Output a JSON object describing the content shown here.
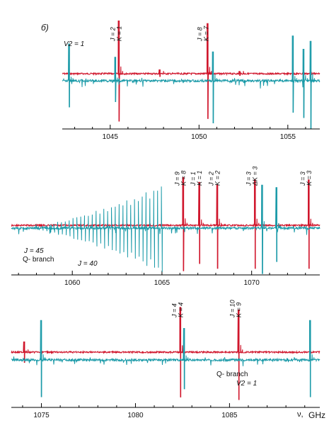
{
  "figure_label": "б)",
  "unit_label": "GHz",
  "nu_symbol": "ν,",
  "colors": {
    "red": "#d0162c",
    "blue": "#1a9aa8",
    "axis": "#000000"
  },
  "chart_data": [
    {
      "type": "line",
      "panel": "top",
      "xlim": [
        1042.3,
        1056.8
      ],
      "ticks": [
        1045,
        1050,
        1055
      ],
      "tick_labels": [
        "1045",
        "1050",
        "1055"
      ],
      "series": [
        {
          "color": "red",
          "peaks": [
            {
              "x": 1045.5,
              "up": 1.0,
              "down": 0.9
            },
            {
              "x": 1050.5,
              "up": 0.95,
              "down": 0.85
            },
            {
              "x": 1047.8,
              "up": 0.08,
              "down": 0.06
            },
            {
              "x": 1052.3,
              "up": 0.05,
              "down": 0.04
            }
          ]
        },
        {
          "color": "blue",
          "peaks": [
            {
              "x": 1042.7,
              "up": 0.7,
              "down": 0.5
            },
            {
              "x": 1045.3,
              "up": 0.45,
              "down": 0.4
            },
            {
              "x": 1050.8,
              "up": 0.55,
              "down": 0.8
            },
            {
              "x": 1055.3,
              "up": 0.85,
              "down": 0.6
            },
            {
              "x": 1055.9,
              "up": 0.6,
              "down": 0.7
            },
            {
              "x": 1056.3,
              "up": 0.75,
              "down": 0.9
            }
          ]
        }
      ],
      "annotations": [
        {
          "x": 1045.5,
          "lines": [
            "J = 2",
            "K = 1"
          ]
        },
        {
          "x": 1050.4,
          "lines": [
            "J = 8",
            "K = 7"
          ]
        }
      ],
      "notes": [
        {
          "text": "V2 = 1"
        }
      ]
    },
    {
      "type": "line",
      "panel": "middle",
      "xlim": [
        1056.6,
        1073.8
      ],
      "ticks": [
        1060,
        1065,
        1070
      ],
      "tick_labels": [
        "1060",
        "1065",
        "1070"
      ],
      "series": [
        {
          "color": "red",
          "peaks": [
            {
              "x": 1066.2,
              "up": 1.0,
              "down": 0.95
            },
            {
              "x": 1067.1,
              "up": 0.9,
              "down": 0.8
            },
            {
              "x": 1068.1,
              "up": 0.85,
              "down": 0.9
            },
            {
              "x": 1070.2,
              "up": 0.95,
              "down": 0.9
            },
            {
              "x": 1073.2,
              "up": 0.95,
              "down": 0.9
            }
          ]
        },
        {
          "color": "blue",
          "peaks": [
            {
              "x": 1070.6,
              "up": 0.9,
              "down": 0.95
            },
            {
              "x": 1071.4,
              "up": 0.85,
              "down": 0.7
            }
          ],
          "q_branch": {
            "from": 1057.5,
            "to": 1065.0,
            "lines": 36,
            "max_amp": 1.0
          }
        }
      ],
      "annotations": [
        {
          "x": 1066.2,
          "lines": [
            "J = 9",
            "K = 8"
          ]
        },
        {
          "x": 1067.1,
          "lines": [
            "J = 1",
            "K = 1"
          ]
        },
        {
          "x": 1068.1,
          "lines": [
            "J = 2",
            "K = 2"
          ]
        },
        {
          "x": 1070.2,
          "lines": [
            "J = 3",
            "ΔK = 3"
          ]
        },
        {
          "x": 1073.2,
          "lines": [
            "J = 3",
            "K = 3"
          ]
        }
      ],
      "notes": [
        {
          "text": "J = 45"
        },
        {
          "text": "Q- branch"
        },
        {
          "text": "J = 40"
        }
      ]
    },
    {
      "type": "line",
      "panel": "bottom",
      "xlim": [
        1073.4,
        1089.8
      ],
      "ticks": [
        1075,
        1080,
        1085
      ],
      "tick_labels": [
        "1075",
        "1080",
        "1085"
      ],
      "series": [
        {
          "color": "red",
          "peaks": [
            {
              "x": 1074.1,
              "up": 0.2,
              "down": 0.2
            },
            {
              "x": 1082.4,
              "up": 0.85,
              "down": 0.85
            },
            {
              "x": 1085.5,
              "up": 0.8,
              "down": 0.9
            }
          ]
        },
        {
          "color": "blue",
          "peaks": [
            {
              "x": 1075.0,
              "up": 0.75,
              "down": 0.7
            },
            {
              "x": 1082.6,
              "up": 0.6,
              "down": 0.55
            },
            {
              "x": 1089.3,
              "up": 0.75,
              "down": 0.7
            }
          ]
        }
      ],
      "annotations": [
        {
          "x": 1082.4,
          "lines": [
            "J = 4",
            "K = 4"
          ]
        },
        {
          "x": 1085.5,
          "lines": [
            "J = 10",
            "K = 9"
          ]
        }
      ],
      "notes": [
        {
          "text": "Q- branch"
        },
        {
          "text": "V2 = 1"
        }
      ]
    }
  ]
}
